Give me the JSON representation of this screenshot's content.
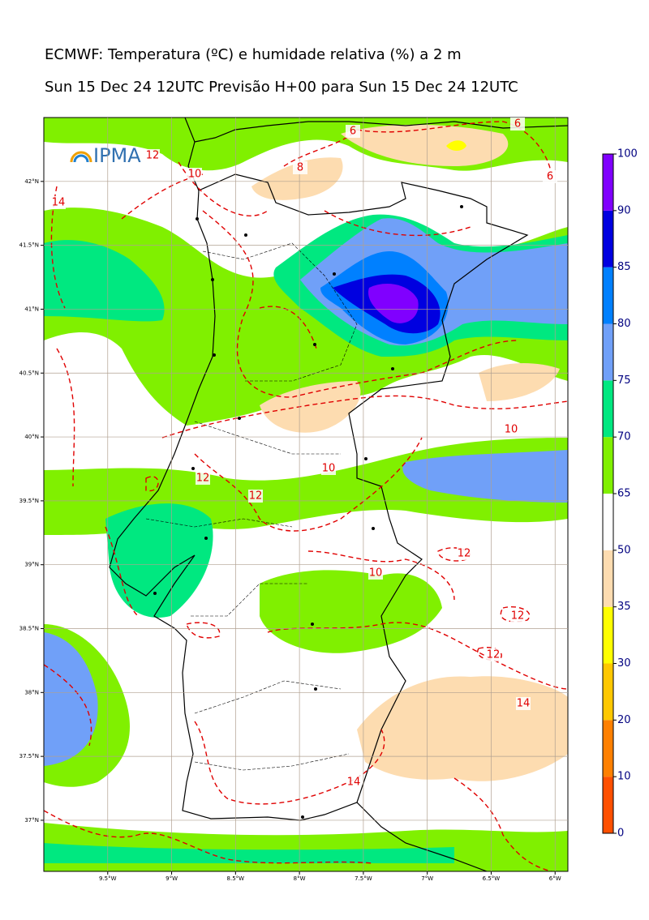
{
  "header": {
    "title": "ECMWF: Temperatura (ºC) e humidade relativa (%) a 2 m",
    "subtitle": "Sun 15 Dec 24 12UTC Previsão H+00 para Sun 15 Dec 24 12UTC"
  },
  "logo": {
    "text": "IPMA"
  },
  "map": {
    "xlim": [
      -10,
      -5.9
    ],
    "ylim": [
      36.6,
      42.5
    ],
    "xticks": [
      {
        "value": -9.5,
        "label": "9.5°W"
      },
      {
        "value": -9,
        "label": "9°W"
      },
      {
        "value": -8.5,
        "label": "8.5°W"
      },
      {
        "value": -8,
        "label": "8°W"
      },
      {
        "value": -7.5,
        "label": "7.5°W"
      },
      {
        "value": -7,
        "label": "7°W"
      },
      {
        "value": -6.5,
        "label": "6.5°W"
      },
      {
        "value": -6,
        "label": "6°W"
      }
    ],
    "yticks": [
      {
        "value": 42,
        "label": "42°N"
      },
      {
        "value": 41.5,
        "label": "41.5°N"
      },
      {
        "value": 41,
        "label": "41°N"
      },
      {
        "value": 40.5,
        "label": "40.5°N"
      },
      {
        "value": 40,
        "label": "40°N"
      },
      {
        "value": 39.5,
        "label": "39.5°N"
      },
      {
        "value": 39,
        "label": "39°N"
      },
      {
        "value": 38.5,
        "label": "38.5°N"
      },
      {
        "value": 38,
        "label": "38°N"
      },
      {
        "value": 37.5,
        "label": "37.5°N"
      },
      {
        "value": 37,
        "label": "37°N"
      }
    ],
    "contour_labels": [
      "12",
      "10",
      "8",
      "6",
      "6",
      "6",
      "14",
      "10",
      "10",
      "12",
      "12",
      "10",
      "12",
      "12",
      "12",
      "14",
      "14"
    ]
  },
  "colorbar": {
    "ticks": [
      0,
      10,
      20,
      30,
      35,
      50,
      65,
      70,
      75,
      80,
      85,
      90,
      100
    ],
    "colors": [
      "#ff5000",
      "#ff8000",
      "#ffc800",
      "#ffff00",
      "#fddcb0",
      "#ffffff",
      "#80f000",
      "#00e880",
      "#70a0f8",
      "#0080ff",
      "#0000e0",
      "#8000ff"
    ]
  }
}
